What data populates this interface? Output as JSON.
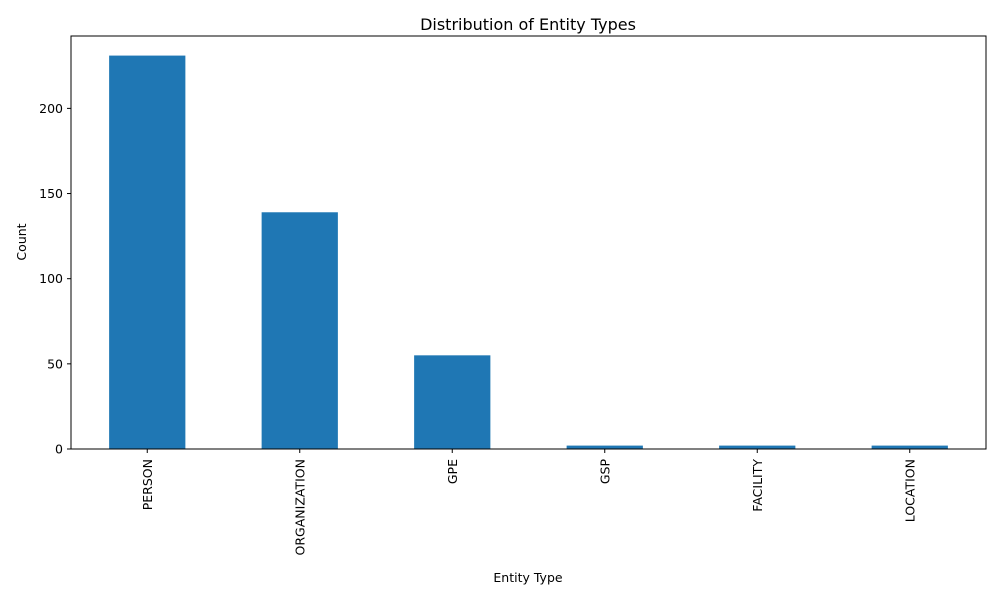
{
  "chart_data": {
    "type": "bar",
    "title": "Distribution of Entity Types",
    "xlabel": "Entity Type",
    "ylabel": "Count",
    "categories": [
      "PERSON",
      "ORGANIZATION",
      "GPE",
      "GSP",
      "FACILITY",
      "LOCATION"
    ],
    "values": [
      231,
      139,
      55,
      2,
      2,
      2
    ],
    "ylim": [
      0,
      242.5
    ],
    "yticks": [
      0,
      50,
      100,
      150,
      200
    ],
    "grid": false,
    "legend": "none",
    "bar_color": "#1f77b4"
  }
}
